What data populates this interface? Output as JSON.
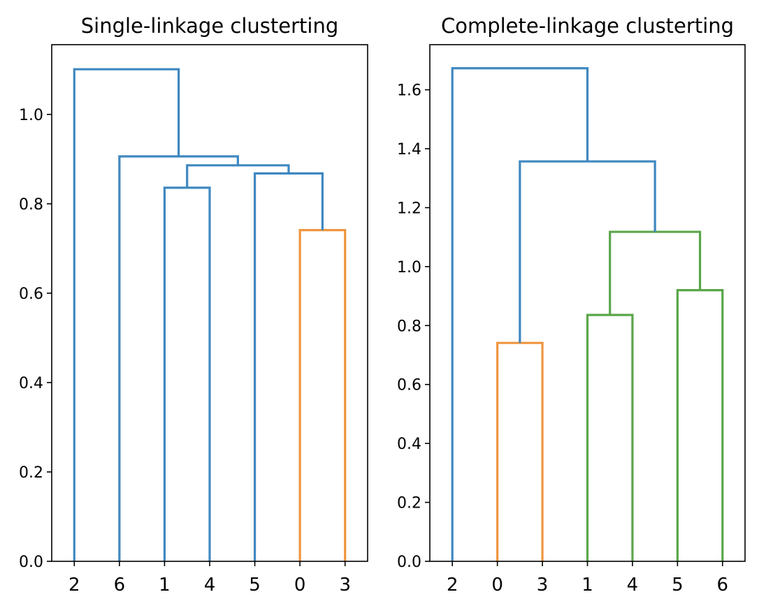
{
  "chart_data": [
    {
      "type": "dendrogram",
      "title": "Single-linkage clusterting",
      "leaf_order": [
        "2",
        "6",
        "1",
        "4",
        "5",
        "0",
        "3"
      ],
      "ylim": [
        0,
        1.156
      ],
      "yticks": [
        0.0,
        0.2,
        0.4,
        0.6,
        0.8,
        1.0
      ],
      "ytick_labels": [
        "0.0",
        "0.2",
        "0.4",
        "0.6",
        "0.8",
        "1.0"
      ],
      "merges": [
        {
          "left": "0",
          "right": "3",
          "height": 0.741,
          "color": "#f0953f"
        },
        {
          "left": "5",
          "right": "(0,3)",
          "height": 0.868,
          "color": "#3f88c0"
        },
        {
          "left": "1",
          "right": "4",
          "height": 0.836,
          "color": "#3f88c0"
        },
        {
          "left": "(1,4)",
          "right": "(5,0,3)",
          "height": 0.886,
          "color": "#3f88c0"
        },
        {
          "left": "6",
          "right": "(1,4,5,0,3)",
          "height": 0.906,
          "color": "#3f88c0"
        },
        {
          "left": "2",
          "right": "(6,1,4,5,0,3)",
          "height": 1.101,
          "color": "#3f88c0"
        }
      ]
    },
    {
      "type": "dendrogram",
      "title": "Complete-linkage clusterting",
      "leaf_order": [
        "2",
        "0",
        "3",
        "1",
        "4",
        "5",
        "6"
      ],
      "ylim": [
        0,
        1.753
      ],
      "yticks": [
        0.0,
        0.2,
        0.4,
        0.6,
        0.8,
        1.0,
        1.2,
        1.4,
        1.6
      ],
      "ytick_labels": [
        "0.0",
        "0.2",
        "0.4",
        "0.6",
        "0.8",
        "1.0",
        "1.2",
        "1.4",
        "1.6"
      ],
      "merges": [
        {
          "left": "0",
          "right": "3",
          "height": 0.741,
          "color": "#f0953f"
        },
        {
          "left": "1",
          "right": "4",
          "height": 0.836,
          "color": "#5aa64a"
        },
        {
          "left": "5",
          "right": "6",
          "height": 0.92,
          "color": "#5aa64a"
        },
        {
          "left": "(1,4)",
          "right": "(5,6)",
          "height": 1.118,
          "color": "#5aa64a"
        },
        {
          "left": "(0,3)",
          "right": "(1,4,5,6)",
          "height": 1.357,
          "color": "#3f88c0"
        },
        {
          "left": "2",
          "right": "(0,3,1,4,5,6)",
          "height": 1.673,
          "color": "#3f88c0"
        }
      ]
    }
  ]
}
